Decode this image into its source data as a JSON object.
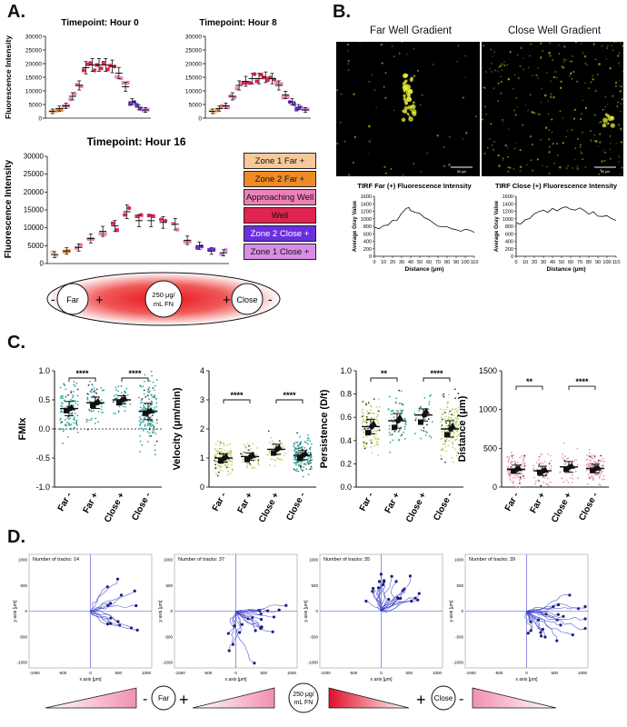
{
  "panels": {
    "a": "A.",
    "b": "B.",
    "c": "C.",
    "d": "D."
  },
  "colors": {
    "zone1_far": "#f6c89a",
    "zone2_far": "#f08a24",
    "approaching": "#ee7fb9",
    "well": "#e0234f",
    "zone2_close": "#6a2fe0",
    "zone1_close": "#d98ee6",
    "track_blue": "#2a2fb4",
    "teal": "#2fa8a0",
    "green_dot": "#b7d86a",
    "pink_dot": "#e89aaa"
  },
  "panel_a": {
    "y_title": "Fluorescence Intensity",
    "hour0_title": "Timepoint: Hour 0",
    "hour8_title": "Timepoint: Hour 8",
    "hour16_title": "Timepoint: Hour 16",
    "y_ticks_small": [
      "30000",
      "25000",
      "20000",
      "15000",
      "10000",
      "5000",
      "0"
    ],
    "y_ticks_small_right": [
      "30000",
      "25000",
      "20000",
      "15000",
      "10000",
      "5000",
      "0"
    ],
    "y_ticks_big": [
      "30000",
      "25000",
      "20000",
      "15000",
      "10000",
      "5000",
      "0"
    ],
    "legend": [
      "Zone 1 Far +",
      "Zone 2 Far +",
      "Approaching Well",
      "Well",
      "Zone 2 Close +",
      "Zone 1 Close +"
    ],
    "diagram": {
      "minus_left": "-",
      "far": "Far",
      "plus_left": "+",
      "center_line1": "250 μg/",
      "center_line2": "mL FN",
      "plus_right": "+",
      "close": "Close",
      "minus_right": "-"
    }
  },
  "panel_b": {
    "far_title": "Far Well Gradient",
    "close_title": "Close Well Gradient",
    "scale_label": "50 μm",
    "plot_far_title": "TIRF Far (+) Fluorescence Intensity",
    "plot_close_title": "TIRF Close (+) Fluorescence Intensity",
    "ylabel": "Average Gray Value",
    "xlabel": "Distance (μm)",
    "y_ticks": [
      "1600",
      "1400",
      "1200",
      "1000",
      "800",
      "600",
      "400",
      "200",
      "0"
    ],
    "x_ticks": [
      "0",
      "10",
      "20",
      "30",
      "40",
      "50",
      "60",
      "70",
      "80",
      "90",
      "100",
      "110"
    ]
  },
  "panel_c": {
    "categories": [
      "Far -",
      "Far +",
      "Close +",
      "Close -"
    ],
    "sig_labels": [
      "****",
      "****",
      "****",
      "****",
      "**",
      "****",
      "**",
      "****"
    ],
    "plots": [
      {
        "ylabel": "FMIx",
        "ticks": [
          "1.0",
          "0.5",
          "0.0",
          "-0.5",
          "-1.0"
        ]
      },
      {
        "ylabel": "Velocity (μm/min)",
        "ticks": [
          "4",
          "3",
          "2",
          "1",
          "0"
        ]
      },
      {
        "ylabel": "Persistence (D/t)",
        "ticks": [
          "1.0",
          "0.8",
          "0.6",
          "0.4",
          "0.2",
          "0.0"
        ]
      },
      {
        "ylabel": "Distance (μm)",
        "ticks": [
          "1500",
          "1000",
          "500",
          "0"
        ]
      }
    ]
  },
  "panel_d": {
    "tracks": [
      "Number of tracks: 14",
      "Number of tracks: 37",
      "Number of tracks: 35",
      "Number of tracks: 39"
    ],
    "xaxis": "x axis [μm]",
    "yaxis": "y axis [μm]",
    "ticks": [
      "-1000",
      "-500",
      "0",
      "500",
      "1000"
    ],
    "far": "Far",
    "close": "Close",
    "minus_left": "-",
    "plus_left": "+",
    "center_line1": "250 μg/",
    "center_line2": "mL FN",
    "plus_right": "+",
    "minus_right": "-"
  },
  "chart_data": [
    {
      "type": "scatter",
      "title": "Timepoint: Hour 0",
      "ylabel": "Fluorescence Intensity",
      "ylim": [
        0,
        30000
      ],
      "series": [
        {
          "values": [
            2500,
            3500,
            4500,
            8000,
            12000,
            18500,
            19500,
            19500,
            19500,
            19000,
            16500,
            11500,
            6000,
            4000,
            3000
          ]
        }
      ]
    },
    {
      "type": "scatter",
      "title": "Timepoint: Hour 8",
      "ylim": [
        0,
        30000
      ],
      "series": [
        {
          "values": [
            2500,
            3500,
            4500,
            8000,
            12000,
            13500,
            14500,
            14500,
            15000,
            14500,
            12000,
            8500,
            6000,
            4000,
            3000
          ]
        }
      ]
    },
    {
      "type": "scatter",
      "title": "Timepoint: Hour 16",
      "ylabel": "Fluorescence Intensity",
      "ylim": [
        0,
        30000
      ],
      "series": [
        {
          "values": [
            2500,
            3500,
            4500,
            7000,
            9000,
            10500,
            14500,
            12000,
            12000,
            11500,
            11000,
            6500,
            5000,
            3500,
            3000
          ]
        }
      ]
    },
    {
      "type": "line",
      "title": "TIRF Far (+) Fluorescence Intensity",
      "xlabel": "Distance (μm)",
      "ylabel": "Average Gray Value",
      "xlim": [
        0,
        110
      ],
      "ylim": [
        0,
        1600
      ],
      "x": [
        0,
        5,
        10,
        15,
        20,
        25,
        30,
        35,
        38,
        40,
        45,
        50,
        55,
        60,
        65,
        70,
        75,
        80,
        85,
        90,
        95,
        100,
        105,
        110
      ],
      "y": [
        800,
        780,
        820,
        860,
        920,
        1000,
        1150,
        1300,
        1280,
        1200,
        1150,
        1100,
        1050,
        950,
        900,
        850,
        820,
        780,
        750,
        720,
        700,
        680,
        650,
        620
      ]
    },
    {
      "type": "line",
      "title": "TIRF Close (+) Fluorescence Intensity",
      "xlabel": "Distance (μm)",
      "ylabel": "Average Gray Value",
      "xlim": [
        0,
        110
      ],
      "ylim": [
        0,
        1600
      ],
      "x": [
        0,
        5,
        10,
        15,
        20,
        25,
        30,
        35,
        40,
        45,
        50,
        55,
        60,
        65,
        70,
        75,
        80,
        85,
        90,
        95,
        100,
        105,
        110
      ],
      "y": [
        900,
        850,
        950,
        1050,
        1100,
        1150,
        1200,
        1200,
        1250,
        1250,
        1300,
        1280,
        1250,
        1200,
        1250,
        1200,
        1150,
        1200,
        1100,
        1100,
        1050,
        1000,
        1000
      ]
    },
    {
      "type": "scatter",
      "ylabel": "FMIx",
      "ylim": [
        -1.0,
        1.0
      ],
      "categories": [
        "Far -",
        "Far +",
        "Close +",
        "Close -"
      ],
      "means": [
        0.35,
        0.45,
        0.5,
        0.3
      ]
    },
    {
      "type": "scatter",
      "ylabel": "Velocity (μm/min)",
      "ylim": [
        0,
        4
      ],
      "categories": [
        "Far -",
        "Far +",
        "Close +",
        "Close -"
      ],
      "means": [
        1.0,
        1.05,
        1.3,
        1.1
      ]
    },
    {
      "type": "scatter",
      "ylabel": "Persistence (D/t)",
      "ylim": [
        0,
        1.0
      ],
      "categories": [
        "Far -",
        "Far +",
        "Close +",
        "Close -"
      ],
      "means": [
        0.52,
        0.57,
        0.62,
        0.5
      ]
    },
    {
      "type": "scatter",
      "ylabel": "Distance (μm)",
      "ylim": [
        0,
        1500
      ],
      "categories": [
        "Far -",
        "Far +",
        "Close +",
        "Close -"
      ],
      "means": [
        230,
        210,
        260,
        240
      ]
    }
  ]
}
